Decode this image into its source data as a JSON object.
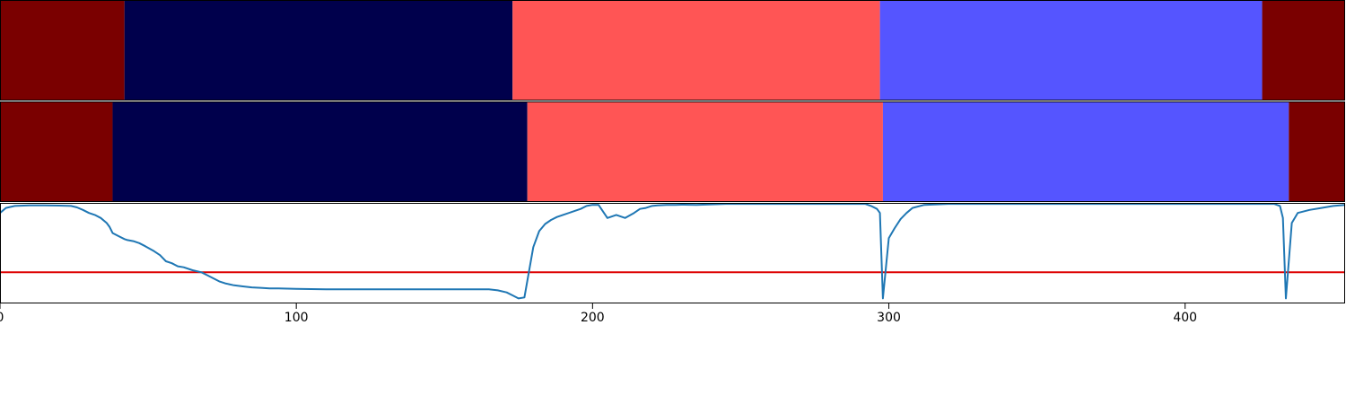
{
  "chart_data": [
    {
      "type": "segment_strip",
      "xlim": [
        0,
        454
      ],
      "segments": [
        {
          "start": 0,
          "end": 42,
          "color": "#7a0000"
        },
        {
          "start": 42,
          "end": 173,
          "color": "#00004c"
        },
        {
          "start": 173,
          "end": 297,
          "color": "#ff5555"
        },
        {
          "start": 297,
          "end": 426,
          "color": "#5555ff"
        },
        {
          "start": 426,
          "end": 454,
          "color": "#7a0000"
        }
      ]
    },
    {
      "type": "segment_strip",
      "xlim": [
        0,
        454
      ],
      "segments": [
        {
          "start": 0,
          "end": 38,
          "color": "#7a0000"
        },
        {
          "start": 38,
          "end": 178,
          "color": "#00004c"
        },
        {
          "start": 178,
          "end": 298,
          "color": "#ff5555"
        },
        {
          "start": 298,
          "end": 435,
          "color": "#5555ff"
        },
        {
          "start": 435,
          "end": 454,
          "color": "#7a0000"
        }
      ]
    },
    {
      "type": "line",
      "xlim": [
        0,
        454
      ],
      "ylim": [
        0,
        1
      ],
      "xticks": [
        0,
        100,
        200,
        300,
        400
      ],
      "xtick_labels": [
        "0",
        "100",
        "200",
        "300",
        "400"
      ],
      "threshold": {
        "y": 0.31,
        "color": "#dd0000"
      },
      "series": [
        {
          "color": "#1f77b4",
          "points": [
            [
              0,
              0.9
            ],
            [
              2,
              0.95
            ],
            [
              5,
              0.97
            ],
            [
              10,
              0.975
            ],
            [
              15,
              0.975
            ],
            [
              20,
              0.973
            ],
            [
              24,
              0.97
            ],
            [
              26,
              0.955
            ],
            [
              28,
              0.93
            ],
            [
              30,
              0.9
            ],
            [
              32,
              0.88
            ],
            [
              34,
              0.85
            ],
            [
              36,
              0.8
            ],
            [
              37,
              0.76
            ],
            [
              38,
              0.7
            ],
            [
              40,
              0.67
            ],
            [
              42,
              0.64
            ],
            [
              43,
              0.63
            ],
            [
              45,
              0.62
            ],
            [
              47,
              0.6
            ],
            [
              49,
              0.57
            ],
            [
              52,
              0.52
            ],
            [
              54,
              0.48
            ],
            [
              56,
              0.42
            ],
            [
              58,
              0.4
            ],
            [
              60,
              0.37
            ],
            [
              62,
              0.36
            ],
            [
              65,
              0.33
            ],
            [
              68,
              0.31
            ],
            [
              70,
              0.28
            ],
            [
              72,
              0.25
            ],
            [
              74,
              0.22
            ],
            [
              76,
              0.2
            ],
            [
              79,
              0.18
            ],
            [
              82,
              0.17
            ],
            [
              85,
              0.16
            ],
            [
              88,
              0.155
            ],
            [
              91,
              0.15
            ],
            [
              94,
              0.15
            ],
            [
              100,
              0.145
            ],
            [
              110,
              0.14
            ],
            [
              120,
              0.14
            ],
            [
              130,
              0.14
            ],
            [
              140,
              0.14
            ],
            [
              150,
              0.14
            ],
            [
              160,
              0.14
            ],
            [
              165,
              0.14
            ],
            [
              168,
              0.13
            ],
            [
              171,
              0.11
            ],
            [
              173,
              0.08
            ],
            [
              175,
              0.05
            ],
            [
              177,
              0.06
            ],
            [
              180,
              0.56
            ],
            [
              182,
              0.72
            ],
            [
              184,
              0.79
            ],
            [
              186,
              0.83
            ],
            [
              188,
              0.86
            ],
            [
              190,
              0.88
            ],
            [
              193,
              0.91
            ],
            [
              196,
              0.94
            ],
            [
              198,
              0.97
            ],
            [
              200,
              0.98
            ],
            [
              202,
              0.98
            ],
            [
              205,
              0.85
            ],
            [
              208,
              0.88
            ],
            [
              211,
              0.85
            ],
            [
              214,
              0.9
            ],
            [
              216,
              0.94
            ],
            [
              218,
              0.95
            ],
            [
              220,
              0.97
            ],
            [
              222,
              0.975
            ],
            [
              225,
              0.98
            ],
            [
              228,
              0.98
            ],
            [
              230,
              0.982
            ],
            [
              235,
              0.98
            ],
            [
              245,
              0.99
            ],
            [
              255,
              0.99
            ],
            [
              265,
              0.99
            ],
            [
              275,
              0.99
            ],
            [
              285,
              0.99
            ],
            [
              292,
              0.99
            ],
            [
              294,
              0.97
            ],
            [
              296,
              0.94
            ],
            [
              297,
              0.9
            ],
            [
              298,
              0.05
            ],
            [
              300,
              0.65
            ],
            [
              302,
              0.75
            ],
            [
              304,
              0.84
            ],
            [
              306,
              0.9
            ],
            [
              308,
              0.95
            ],
            [
              312,
              0.98
            ],
            [
              320,
              0.99
            ],
            [
              340,
              0.99
            ],
            [
              360,
              0.99
            ],
            [
              380,
              0.99
            ],
            [
              400,
              0.99
            ],
            [
              420,
              0.99
            ],
            [
              430,
              0.99
            ],
            [
              432,
              0.97
            ],
            [
              433,
              0.85
            ],
            [
              434,
              0.05
            ],
            [
              436,
              0.8
            ],
            [
              438,
              0.9
            ],
            [
              442,
              0.93
            ],
            [
              446,
              0.95
            ],
            [
              450,
              0.97
            ],
            [
              454,
              0.98
            ]
          ]
        }
      ]
    }
  ]
}
